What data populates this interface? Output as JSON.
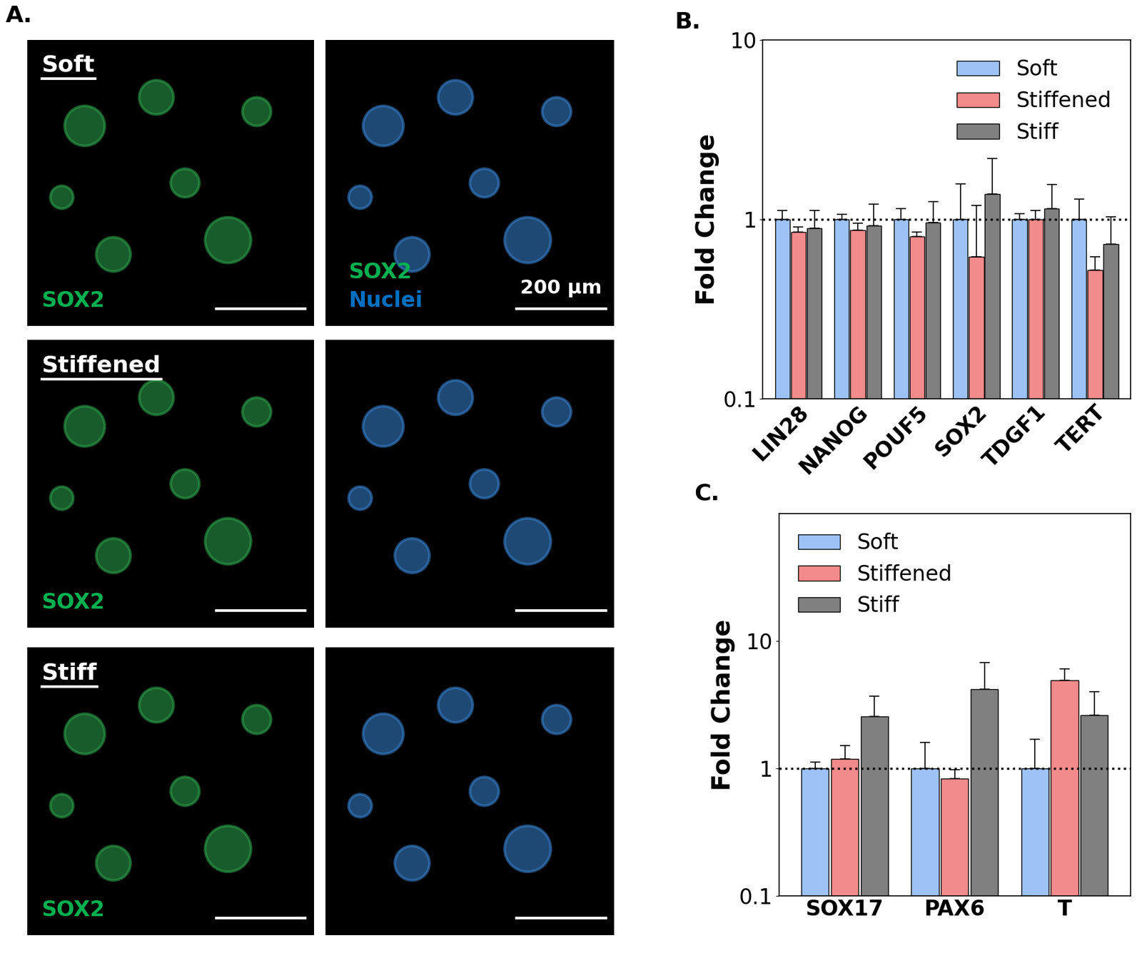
{
  "panel_a": {
    "label": "A.",
    "conditions": [
      "Soft",
      "Stiffened",
      "Stiff"
    ],
    "left_channels": [
      {
        "text": "SOX2",
        "color": "#00b050"
      }
    ],
    "right_channels": [
      {
        "text": "SOX2",
        "color": "#00b050"
      },
      {
        "text": "Nuclei",
        "color": "#0070c0"
      }
    ],
    "scale_bar": "200 µm"
  },
  "chart_data": [
    {
      "type": "bar",
      "title": "B.",
      "categories": [
        "LIN28",
        "NANOG",
        "POUF5",
        "SOX2",
        "TDGF1",
        "TERT"
      ],
      "series": [
        {
          "name": "Soft",
          "color": "#9dc3f5",
          "values": [
            1,
            1,
            1,
            1,
            1,
            1
          ],
          "errors": [
            0.12,
            0.07,
            0.15,
            0.58,
            0.08,
            0.3
          ]
        },
        {
          "name": "Stiffened",
          "color": "#f28b8b",
          "values": [
            0.85,
            0.87,
            0.8,
            0.62,
            1.0,
            0.52
          ],
          "errors": [
            0.06,
            0.08,
            0.05,
            0.58,
            0.12,
            0.1
          ]
        },
        {
          "name": "Stiff",
          "color": "#808080",
          "values": [
            0.89,
            0.92,
            0.96,
            1.38,
            1.15,
            0.73
          ],
          "errors": [
            0.23,
            0.3,
            0.3,
            0.8,
            0.42,
            0.3
          ]
        }
      ],
      "y_label": "Fold Change",
      "log": "y",
      "ylim": [
        0.1,
        10
      ],
      "yticks": [
        0.1,
        1,
        10
      ],
      "legend": "upper right",
      "baseline": 1
    },
    {
      "type": "bar",
      "title": "C.",
      "categories": [
        "SOX17",
        "PAX6",
        "T"
      ],
      "series": [
        {
          "name": "Soft",
          "color": "#9dc3f5",
          "values": [
            1,
            1,
            1
          ],
          "errors": [
            0.12,
            0.6,
            0.7
          ]
        },
        {
          "name": "Stiffened",
          "color": "#f28b8b",
          "values": [
            1.18,
            0.83,
            4.9
          ],
          "errors": [
            0.32,
            0.15,
            1.1
          ]
        },
        {
          "name": "Stiff",
          "color": "#808080",
          "values": [
            2.55,
            4.2,
            2.6
          ],
          "errors": [
            1.15,
            2.6,
            1.4
          ]
        }
      ],
      "y_label": "Fold Change",
      "log": "y",
      "ylim": [
        0.1,
        100
      ],
      "yticks": [
        0.1,
        1,
        10
      ],
      "legend": "upper left",
      "baseline": 1
    }
  ]
}
